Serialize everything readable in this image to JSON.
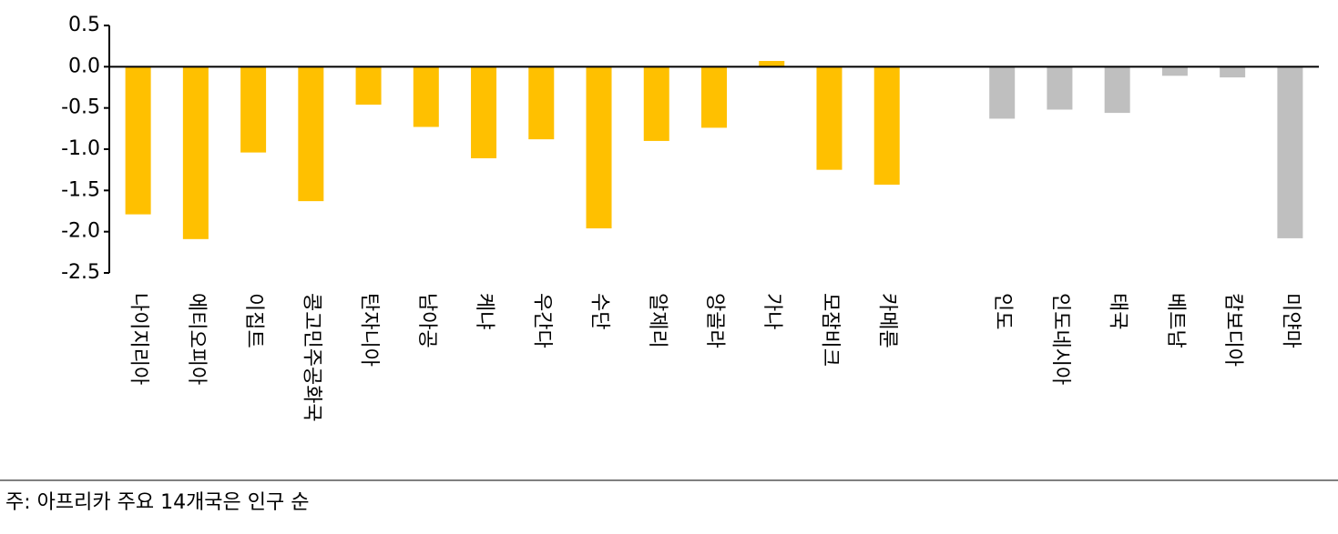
{
  "chart_data": {
    "type": "bar",
    "categories": [
      "나이지리아",
      "에티오피아",
      "이집트",
      "콩고민주공화국",
      "탄자니아",
      "남아공",
      "케냐",
      "우간다",
      "수단",
      "알제리",
      "앙골라",
      "가나",
      "모잠비크",
      "카메룬",
      null,
      "인도",
      "인도네시아",
      "태국",
      "베트남",
      "캄보디아",
      "미얀마"
    ],
    "values": [
      -1.79,
      -2.09,
      -1.04,
      -1.63,
      -0.46,
      -0.73,
      -1.11,
      -0.88,
      -1.96,
      -0.9,
      -0.74,
      0.07,
      -1.25,
      -1.43,
      null,
      -0.63,
      -0.52,
      -0.56,
      -0.11,
      -0.13,
      -2.08
    ],
    "colors": [
      "#ffc000",
      "#ffc000",
      "#ffc000",
      "#ffc000",
      "#ffc000",
      "#ffc000",
      "#ffc000",
      "#ffc000",
      "#ffc000",
      "#ffc000",
      "#ffc000",
      "#ffc000",
      "#ffc000",
      "#ffc000",
      null,
      "#bfbfbf",
      "#bfbfbf",
      "#bfbfbf",
      "#bfbfbf",
      "#bfbfbf",
      "#bfbfbf"
    ],
    "ylim": [
      -2.5,
      0.5
    ],
    "yticks": [
      0.5,
      {
        "value": 0,
        "label": "0.0"
      },
      -0.5,
      {
        "value": -1,
        "label": "-1.0"
      },
      -1.5,
      {
        "value": -2,
        "label": "-2.0"
      },
      -2.5
    ],
    "note": "주: 아프리카 주요 14개국은 인구 순"
  }
}
